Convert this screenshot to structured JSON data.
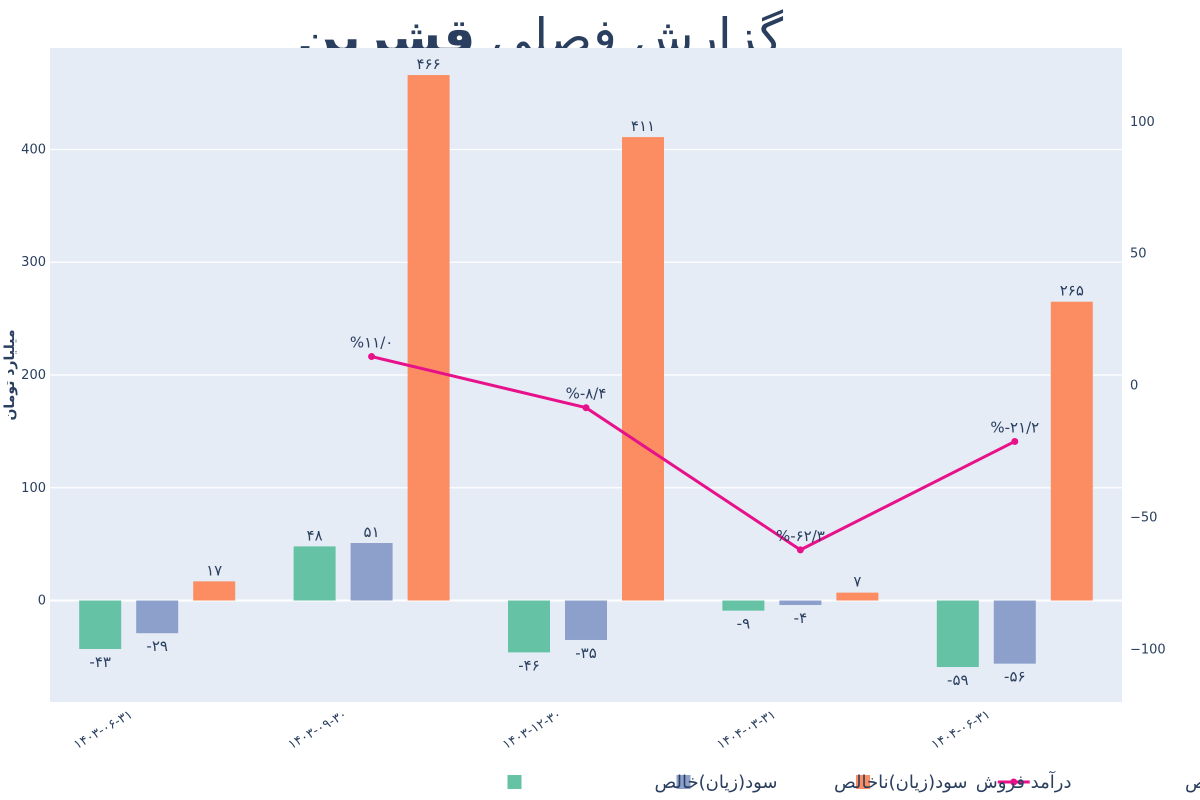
{
  "title": {
    "regular": "گزارش فصلی",
    "bold": "قشرین"
  },
  "chart_data": {
    "type": "bar",
    "categories": [
      "۱۴۰۳-۰۶-۳۱",
      "۱۴۰۳-۰۹-۳۰",
      "۱۴۰۳-۱۲-۳۰",
      "۱۴۰۴-۰۳-۳۱",
      "۱۴۰۴-۰۶-۳۱"
    ],
    "ylabel": "میلیارد تومان",
    "ylim": [
      -90,
      490
    ],
    "y2lim": [
      -120,
      128
    ],
    "yticks": [
      0,
      100,
      200,
      300,
      400
    ],
    "y2ticks": [
      -100,
      -50,
      0,
      50,
      100
    ],
    "grid": true,
    "legend_position": "bottom",
    "colors": {
      "plot_bg": "#e5ecf6",
      "net": "#66c2a5",
      "gross": "#8da0cb",
      "revenue": "#fc8d62",
      "margin": "#e7118a"
    },
    "series": [
      {
        "name": "سود(زیان)خالص",
        "key": "net",
        "values": [
          -43,
          48,
          -46,
          -9,
          -59
        ],
        "labels": [
          "-۴۳",
          "۴۸",
          "-۴۶",
          "-۹",
          "-۵۹"
        ]
      },
      {
        "name": "سود(زیان)ناخالص",
        "key": "gross",
        "values": [
          -29,
          51,
          -35,
          -4,
          -56
        ],
        "labels": [
          "-۲۹",
          "۵۱",
          "-۳۵",
          "-۴",
          "-۵۶"
        ]
      },
      {
        "name": "درآمد فروش",
        "key": "revenue",
        "values": [
          17,
          466,
          411,
          7,
          265
        ],
        "labels": [
          "۱۷",
          "۴۶۶",
          "۴۱۱",
          "۷",
          "۲۶۵"
        ]
      }
    ],
    "line_series": {
      "name": "حاشیه سود ناخالص",
      "key": "margin",
      "axis": "y2",
      "points": [
        {
          "category_index": 1,
          "value": 11.0,
          "label": "%۱۱/۰"
        },
        {
          "category_index": 2,
          "value": -8.4,
          "label": "%-۸/۴"
        },
        {
          "category_index": 3,
          "value": -62.3,
          "label": "%-۶۲/۳"
        },
        {
          "category_index": 4,
          "value": -21.2,
          "label": "%-۲۱/۲"
        }
      ]
    }
  }
}
